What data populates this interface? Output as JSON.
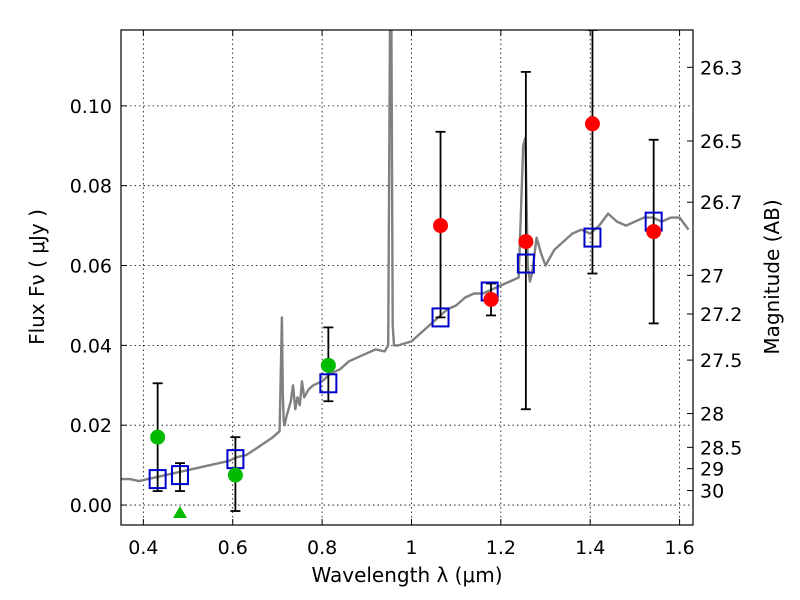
{
  "chart_data": {
    "type": "scatter",
    "xlabel": "Wavelength  λ (μm)",
    "ylabel": "Flux  Fν  ( μJy )",
    "y2label": "Magnitude (AB)",
    "xlim": [
      0.35,
      1.63
    ],
    "ylim": [
      -0.005,
      0.119
    ],
    "grid": true,
    "x_ticks": [
      0.4,
      0.6,
      0.8,
      1.0,
      1.2,
      1.4,
      1.6
    ],
    "x_tick_labels": [
      "0.4",
      "0.6",
      "0.8",
      "1",
      "1.2",
      "1.4",
      "1.6"
    ],
    "y_ticks": [
      0.0,
      0.02,
      0.04,
      0.06,
      0.08,
      0.1
    ],
    "y_tick_labels": [
      "0.00",
      "0.02",
      "0.04",
      "0.06",
      "0.08",
      "0.10"
    ],
    "mag_ticks": [
      "26.3",
      "26.5",
      "26.7",
      "27",
      "27.2",
      "27.5",
      "28",
      "28.5",
      "29",
      "30"
    ],
    "colors": {
      "model": "#808080",
      "model_photometry": "#0000cc",
      "red_points": "#ff0000",
      "green_points": "#00bb00",
      "errorbar": "#000000"
    },
    "series": [
      {
        "name": "model-spectrum",
        "kind": "line",
        "x": [
          0.35,
          0.37,
          0.39,
          0.41,
          0.43,
          0.45,
          0.47,
          0.49,
          0.51,
          0.53,
          0.55,
          0.57,
          0.59,
          0.61,
          0.63,
          0.65,
          0.67,
          0.69,
          0.705,
          0.71,
          0.712,
          0.714,
          0.716,
          0.72,
          0.73,
          0.735,
          0.74,
          0.745,
          0.75,
          0.755,
          0.76,
          0.77,
          0.78,
          0.8,
          0.82,
          0.84,
          0.86,
          0.88,
          0.9,
          0.92,
          0.94,
          0.948,
          0.952,
          0.955,
          0.958,
          0.961,
          0.965,
          0.97,
          1.0,
          1.02,
          1.04,
          1.06,
          1.08,
          1.1,
          1.12,
          1.14,
          1.16,
          1.18,
          1.2,
          1.22,
          1.24,
          1.25,
          1.255,
          1.26,
          1.265,
          1.27,
          1.28,
          1.29,
          1.3,
          1.31,
          1.32,
          1.34,
          1.36,
          1.38,
          1.4,
          1.42,
          1.44,
          1.46,
          1.48,
          1.5,
          1.52,
          1.54,
          1.56,
          1.58,
          1.6,
          1.62
        ],
        "y": [
          0.0065,
          0.0065,
          0.006,
          0.0065,
          0.007,
          0.0075,
          0.008,
          0.0085,
          0.009,
          0.0095,
          0.01,
          0.0105,
          0.011,
          0.012,
          0.0125,
          0.014,
          0.0155,
          0.017,
          0.0185,
          0.047,
          0.028,
          0.021,
          0.02,
          0.022,
          0.026,
          0.03,
          0.024,
          0.027,
          0.025,
          0.031,
          0.027,
          0.029,
          0.03,
          0.031,
          0.033,
          0.034,
          0.036,
          0.037,
          0.038,
          0.039,
          0.0385,
          0.04,
          0.12,
          0.12,
          0.045,
          0.04,
          0.04,
          0.04,
          0.041,
          0.043,
          0.045,
          0.047,
          0.049,
          0.05,
          0.052,
          0.053,
          0.053,
          0.054,
          0.055,
          0.056,
          0.057,
          0.09,
          0.092,
          0.06,
          0.056,
          0.058,
          0.067,
          0.063,
          0.06,
          0.062,
          0.064,
          0.066,
          0.068,
          0.069,
          0.068,
          0.07,
          0.073,
          0.071,
          0.07,
          0.071,
          0.072,
          0.072,
          0.071,
          0.072,
          0.072,
          0.069
        ]
      },
      {
        "name": "model-photometry",
        "kind": "open-square",
        "x": [
          0.432,
          0.482,
          0.606,
          0.814,
          1.065,
          1.175,
          1.256,
          1.405,
          1.542
        ],
        "y": [
          0.0065,
          0.0075,
          0.0115,
          0.0305,
          0.047,
          0.0535,
          0.0605,
          0.067,
          0.071
        ]
      },
      {
        "name": "red-observations",
        "kind": "point",
        "x": [
          1.065,
          1.178,
          1.256,
          1.405,
          1.542
        ],
        "y": [
          0.07,
          0.0515,
          0.066,
          0.0955,
          0.0685
        ],
        "yerr_low": [
          0.047,
          0.0475,
          0.024,
          0.058,
          0.0455
        ],
        "yerr_high": [
          0.0935,
          0.0555,
          0.1085,
          0.119,
          0.0915
        ]
      },
      {
        "name": "green-observations",
        "kind": "point",
        "x": [
          0.432,
          0.606,
          0.814
        ],
        "y": [
          0.017,
          0.0075,
          0.035
        ],
        "yerr_low": [
          0.0035,
          -0.0015,
          0.026
        ],
        "yerr_high": [
          0.0305,
          0.017,
          0.0445
        ]
      },
      {
        "name": "green-upper-limit",
        "kind": "triangle",
        "x": [
          0.482
        ],
        "y": [
          -0.002
        ],
        "yerr_low": [
          0.0035
        ],
        "yerr_high": [
          0.0105
        ]
      }
    ]
  }
}
